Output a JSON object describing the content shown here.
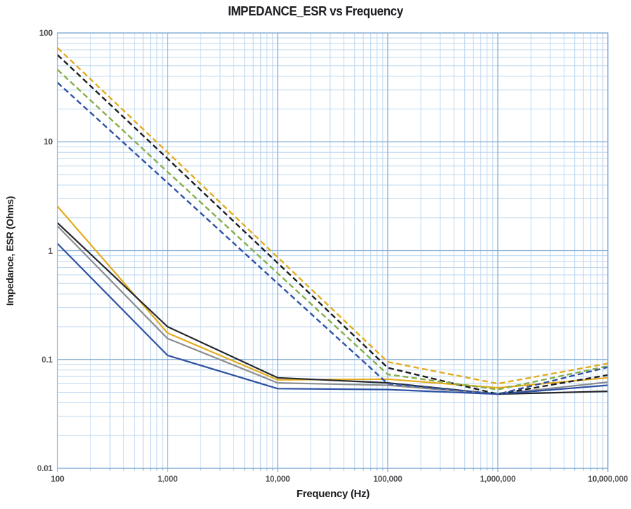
{
  "title": "IMPEDANCE_ESR vs Frequency",
  "axes": {
    "x_label": "Frequency (Hz)",
    "y_label": "Impedance, ESR (Ohms)",
    "x_tick_labels": [
      "100",
      "1,000",
      "10,000",
      "100,000",
      "1,000,000",
      "10,000,000"
    ],
    "y_tick_labels": [
      "100",
      "10",
      "1",
      "0.1",
      "0.01"
    ]
  },
  "chart_data": {
    "type": "line",
    "title": "IMPEDANCE_ESR vs Frequency",
    "xlabel": "Frequency (Hz)",
    "ylabel": "Impedance, ESR (Ohms)",
    "x_scale": "log",
    "y_scale": "log",
    "xlim": [
      100,
      10000000
    ],
    "ylim": [
      0.01,
      100
    ],
    "grid": "full log grid, minor divisions 2-9, light blue; legend: none",
    "x": [
      100,
      1000,
      10000,
      100000,
      1000000,
      10000000
    ],
    "series": [
      {
        "name": "impedance-dashed-gold",
        "style": "dashed",
        "color": "#e3ac1e",
        "values": [
          73,
          8.0,
          0.87,
          0.095,
          0.06,
          0.092
        ]
      },
      {
        "name": "impedance-dashed-black",
        "style": "dashed",
        "color": "#1c1d21",
        "values": [
          63,
          7.0,
          0.77,
          0.084,
          0.048,
          0.072
        ]
      },
      {
        "name": "impedance-dashed-green",
        "style": "dashed",
        "color": "#86ad4a",
        "values": [
          46,
          5.3,
          0.62,
          0.073,
          0.053,
          0.087
        ]
      },
      {
        "name": "impedance-dashed-blue",
        "style": "dashed",
        "color": "#2e51a3",
        "values": [
          35,
          4.2,
          0.5,
          0.06,
          0.048,
          0.085
        ]
      },
      {
        "name": "esr-solid-gold",
        "style": "solid",
        "color": "#e3ac1e",
        "values": [
          2.55,
          0.175,
          0.065,
          0.066,
          0.055,
          0.068
        ]
      },
      {
        "name": "esr-solid-black",
        "style": "solid",
        "color": "#26272c",
        "values": [
          1.8,
          0.2,
          0.068,
          0.061,
          0.048,
          0.051
        ]
      },
      {
        "name": "esr-solid-gray",
        "style": "solid",
        "color": "#8b8d90",
        "values": [
          1.68,
          0.156,
          0.061,
          0.058,
          0.048,
          0.062
        ]
      },
      {
        "name": "esr-solid-blue",
        "style": "solid",
        "color": "#2e51a3",
        "values": [
          1.16,
          0.109,
          0.054,
          0.053,
          0.048,
          0.058
        ]
      }
    ]
  },
  "colors": {
    "grid_minor": "#bdd7ee",
    "grid_major": "#7ea9d4",
    "plot_border": "#7ea9d4",
    "tick_text": "#55565a",
    "title_text": "#1b1c20"
  }
}
